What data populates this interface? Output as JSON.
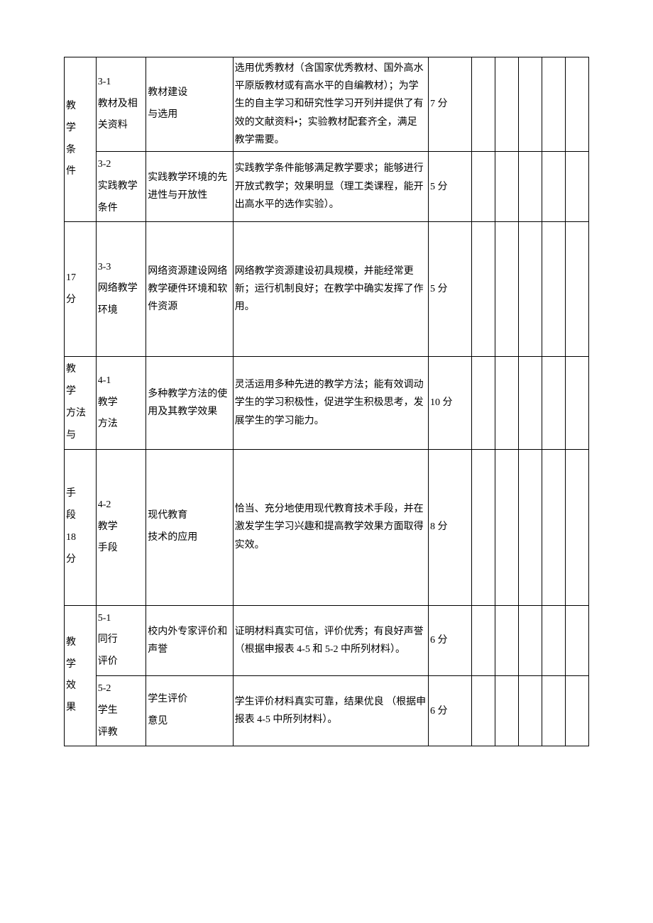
{
  "sections": {
    "s3": {
      "cat_line1": "教",
      "cat_line2": "学",
      "cat_line3": "条",
      "cat_line4": "件",
      "cat_score1": "17",
      "cat_score2": "分",
      "r1": {
        "sub_id": "3-1",
        "sub_label": "教材及相关资料",
        "item_l1": "教材建设",
        "item_l2": "与选用",
        "desc": "选用优秀教材（含国家优秀教材、国外高水平原版教材或有高水平的自编教材）；为学生的自主学习和研究性学习开列并提供了有效的文献资料•；实验教材配套齐全，满足教学需要。",
        "score": "7 分"
      },
      "r2": {
        "sub_id": "3-2",
        "sub_label": "实践教学条件",
        "item": "实践教学环境的先进性与开放性",
        "desc": "实践教学条件能够满足教学要求；能够进行开放式教学；效果明显（理工类课程，能开出高水平的选作实验）。",
        "score": "5 分"
      },
      "r3": {
        "sub_id": "3-3",
        "sub_label": "网络教学环境",
        "item": "网络资源建设网络教学硬件环境和软件资源",
        "desc": "网络教学资源建设初具规模，并能经常更新；运行机制良好；在教学中确实发挥了作用。",
        "score": "5 分"
      }
    },
    "s4": {
      "cat_line1": "教",
      "cat_line2": "学",
      "cat_line3": "方法",
      "cat_line4": "与",
      "cat_line5": "手",
      "cat_line6": "段",
      "cat_score1": "18",
      "cat_score2": "分",
      "r1": {
        "sub_id": "4-1",
        "sub_l1": "教学",
        "sub_l2": "方法",
        "item": "多种教学方法的使用及其教学效果",
        "desc": "灵活运用多种先进的教学方法；能有效调动学生的学习积极性，促进学生积极思考，发展学生的学习能力。",
        "score": "10 分"
      },
      "r2": {
        "sub_id": "4-2",
        "sub_l1": "教学",
        "sub_l2": "手段",
        "item_l1": "现代教育",
        "item_l2": "技术的应用",
        "desc": "恰当、充分地使用现代教育技术手段，并在激发学生学习兴趣和提高教学效果方面取得实效。",
        "score": "8 分"
      }
    },
    "s5": {
      "cat_line1": "教",
      "cat_line2": "学",
      "cat_line3": "效",
      "cat_line4": "果",
      "r1": {
        "sub_id": "5-1",
        "sub_l1": "同行",
        "sub_l2": "评价",
        "item": "校内外专家评价和声誉",
        "desc": "证明材料真实可信，评价优秀；有良好声誉（根据申报表 4-5 和 5-2 中所列材料）。",
        "score": "6 分"
      },
      "r2": {
        "sub_id": "5-2",
        "sub_l1": "学生",
        "sub_l2": "评教",
        "item_l1": "学生评价",
        "item_l2": "意见",
        "desc": "学生评价材料真实可靠，结果优良 （根据申报表 4-5 中所列材料）。",
        "score": "6 分"
      }
    }
  }
}
